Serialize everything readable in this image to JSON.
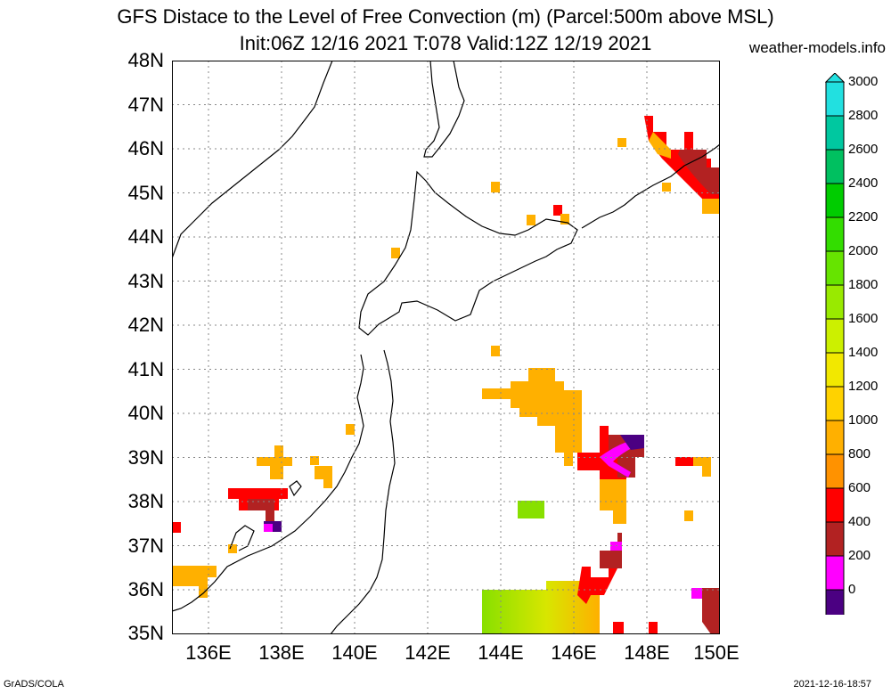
{
  "title": {
    "line1": "GFS Distace to the Level of Free Convection (m) (Parcel:500m above MSL)",
    "line2": "Init:06Z 12/16 2021 T:078 Valid:12Z 12/19 2021"
  },
  "site": "weather-models.info",
  "footer": {
    "left": "GrADS/COLA",
    "right": "2021-12-16-18:57"
  },
  "map": {
    "lat_labels": [
      "48N",
      "47N",
      "46N",
      "45N",
      "44N",
      "43N",
      "42N",
      "41N",
      "40N",
      "39N",
      "38N",
      "37N",
      "36N",
      "35N"
    ],
    "lon_labels": [
      "136E",
      "138E",
      "140E",
      "142E",
      "144E",
      "146E",
      "148E",
      "150E"
    ],
    "lat_range": [
      35,
      48
    ],
    "lon_range": [
      135,
      150
    ],
    "grid": "dotted"
  },
  "colorbar": {
    "labels": [
      "3000",
      "2800",
      "2600",
      "2400",
      "2200",
      "2000",
      "1800",
      "1600",
      "1400",
      "1200",
      "1000",
      "800",
      "600",
      "400",
      "200",
      "0"
    ],
    "colors": [
      "#22e0e0",
      "#00c8a0",
      "#00c060",
      "#00cc00",
      "#33dd00",
      "#66e400",
      "#99ea00",
      "#ccf000",
      "#f2e800",
      "#ffd200",
      "#ffb000",
      "#ff9200",
      "#ff0000",
      "#b22222",
      "#ff00ff",
      "#4b0082"
    ]
  }
}
